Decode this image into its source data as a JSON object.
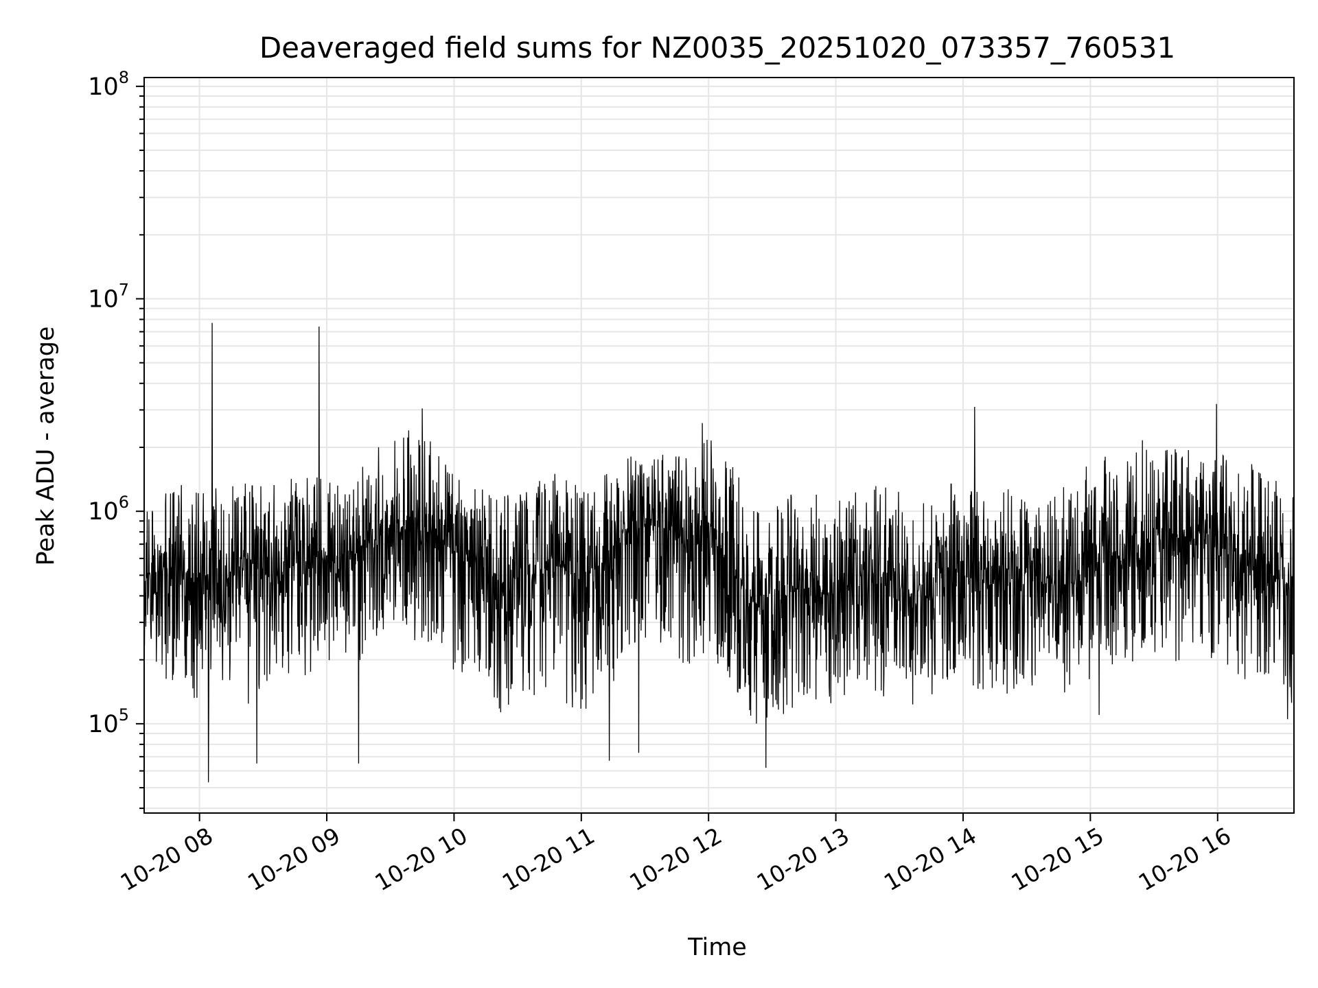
{
  "chart_data": {
    "type": "line",
    "title": "Deaveraged field sums for NZ0035_20251020_073357_760531",
    "xlabel": "Time",
    "ylabel": "Peak ADU - average",
    "yscale": "log",
    "grid": true,
    "line_color": "#000000",
    "grid_color": "#e6e6e6",
    "x_unit": "hours (10-20)",
    "xlim": [
      7.565,
      16.6
    ],
    "ylim": [
      38000,
      110000000
    ],
    "x_ticks": [
      {
        "value": 8,
        "label": "10-20 08"
      },
      {
        "value": 9,
        "label": "10-20 09"
      },
      {
        "value": 10,
        "label": "10-20 10"
      },
      {
        "value": 11,
        "label": "10-20 11"
      },
      {
        "value": 12,
        "label": "10-20 12"
      },
      {
        "value": 13,
        "label": "10-20 13"
      },
      {
        "value": 14,
        "label": "10-20 14"
      },
      {
        "value": 15,
        "label": "10-20 15"
      },
      {
        "value": 16,
        "label": "10-20 16"
      }
    ],
    "y_major_ticks": [
      {
        "value": 100000,
        "base": "10",
        "exp": "5"
      },
      {
        "value": 1000000,
        "base": "10",
        "exp": "6"
      },
      {
        "value": 10000000,
        "base": "10",
        "exp": "7"
      },
      {
        "value": 100000000,
        "base": "10",
        "exp": "8"
      }
    ],
    "series": [
      {
        "name": "field sums",
        "note": "Dense noisy series; baseline envelope sampled, spikes listed explicitly",
        "x": [
          7.57,
          7.8,
          8.0,
          8.2,
          8.4,
          8.6,
          8.8,
          9.0,
          9.2,
          9.4,
          9.6,
          9.8,
          10.0,
          10.2,
          10.4,
          10.6,
          10.8,
          11.0,
          11.2,
          11.4,
          11.6,
          11.8,
          12.0,
          12.2,
          12.4,
          12.6,
          12.8,
          13.0,
          13.2,
          13.4,
          13.6,
          13.8,
          14.0,
          14.2,
          14.4,
          14.6,
          14.8,
          15.0,
          15.2,
          15.4,
          15.6,
          15.8,
          16.0,
          16.2,
          16.4,
          16.6
        ],
        "median": [
          500000,
          550000,
          500000,
          480000,
          550000,
          500000,
          580000,
          600000,
          650000,
          750000,
          850000,
          800000,
          650000,
          550000,
          450000,
          500000,
          550000,
          500000,
          600000,
          900000,
          850000,
          700000,
          900000,
          500000,
          350000,
          400000,
          450000,
          400000,
          500000,
          450000,
          400000,
          550000,
          500000,
          450000,
          450000,
          500000,
          450000,
          550000,
          600000,
          700000,
          750000,
          750000,
          800000,
          600000,
          500000,
          450000
        ],
        "high": [
          1100000,
          1500000,
          1300000,
          1300000,
          1500000,
          1500000,
          1400000,
          1600000,
          1700000,
          2000000,
          2500000,
          2200000,
          1500000,
          1300000,
          1200000,
          1300000,
          1600000,
          1400000,
          1500000,
          1900000,
          2000000,
          1800000,
          2400000,
          1600000,
          1100000,
          1200000,
          1400000,
          1300000,
          1400000,
          1300000,
          1200000,
          1300000,
          1400000,
          1200000,
          1300000,
          1300000,
          1300000,
          1700000,
          1900000,
          2200000,
          2100000,
          2000000,
          2000000,
          1800000,
          1500000,
          1500000
        ],
        "low": [
          180000,
          150000,
          120000,
          140000,
          120000,
          150000,
          160000,
          200000,
          180000,
          250000,
          260000,
          230000,
          150000,
          130000,
          110000,
          120000,
          130000,
          110000,
          140000,
          200000,
          220000,
          180000,
          220000,
          150000,
          90000,
          110000,
          130000,
          120000,
          140000,
          130000,
          120000,
          140000,
          150000,
          130000,
          140000,
          140000,
          140000,
          160000,
          180000,
          200000,
          190000,
          170000,
          180000,
          160000,
          140000,
          120000
        ],
        "spikes": [
          {
            "x": 8.1,
            "y": 7700000
          },
          {
            "x": 8.94,
            "y": 7400000
          },
          {
            "x": 14.09,
            "y": 3100000
          },
          {
            "x": 15.99,
            "y": 3200000
          },
          {
            "x": 9.75,
            "y": 3050000
          },
          {
            "x": 11.95,
            "y": 2600000
          },
          {
            "x": 8.07,
            "y": 53000
          },
          {
            "x": 12.45,
            "y": 62000
          },
          {
            "x": 8.45,
            "y": 65000
          },
          {
            "x": 9.25,
            "y": 65000
          },
          {
            "x": 11.22,
            "y": 67000
          },
          {
            "x": 11.45,
            "y": 73000
          },
          {
            "x": 15.07,
            "y": 110000
          },
          {
            "x": 16.55,
            "y": 105000
          }
        ]
      }
    ]
  }
}
